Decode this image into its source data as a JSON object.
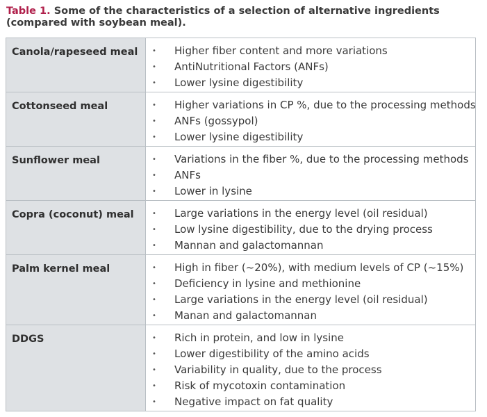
{
  "caption": {
    "label": "Table 1.",
    "text": " Some of the characteristics of a selection of alternative ingredients (compared with soybean meal)."
  },
  "bullet_char": "•",
  "rows": [
    {
      "name": "Canola/rapeseed meal",
      "items": [
        "Higher fiber content and more variations",
        "AntiNutritional Factors (ANFs)",
        "Lower lysine digestibility"
      ]
    },
    {
      "name": "Cottonseed meal",
      "items": [
        "Higher variations in CP %, due to the processing methods",
        "ANFs (gossypol)",
        "Lower lysine digestibility"
      ]
    },
    {
      "name": "Sunflower meal",
      "items": [
        "Variations in the fiber %, due to the processing methods",
        "ANFs",
        "Lower in lysine"
      ]
    },
    {
      "name": "Copra (coconut) meal",
      "items": [
        "Large variations in the energy level (oil residual)",
        "Low lysine digestibility, due to the drying process",
        "Mannan and galactomannan"
      ]
    },
    {
      "name": "Palm kernel meal",
      "items": [
        "High in fiber (~20%), with medium levels of CP (~15%)",
        "Deficiency in lysine and methionine",
        "Large variations in the energy level (oil residual)",
        "Manan and galactomannan"
      ]
    },
    {
      "name": "DDGS",
      "items": [
        "Rich in protein, and low in lysine",
        "Lower digestibility of the amino acids",
        "Variability in quality, due to the process",
        "Risk of mycotoxin contamination",
        "Negative impact on fat quality"
      ]
    }
  ]
}
